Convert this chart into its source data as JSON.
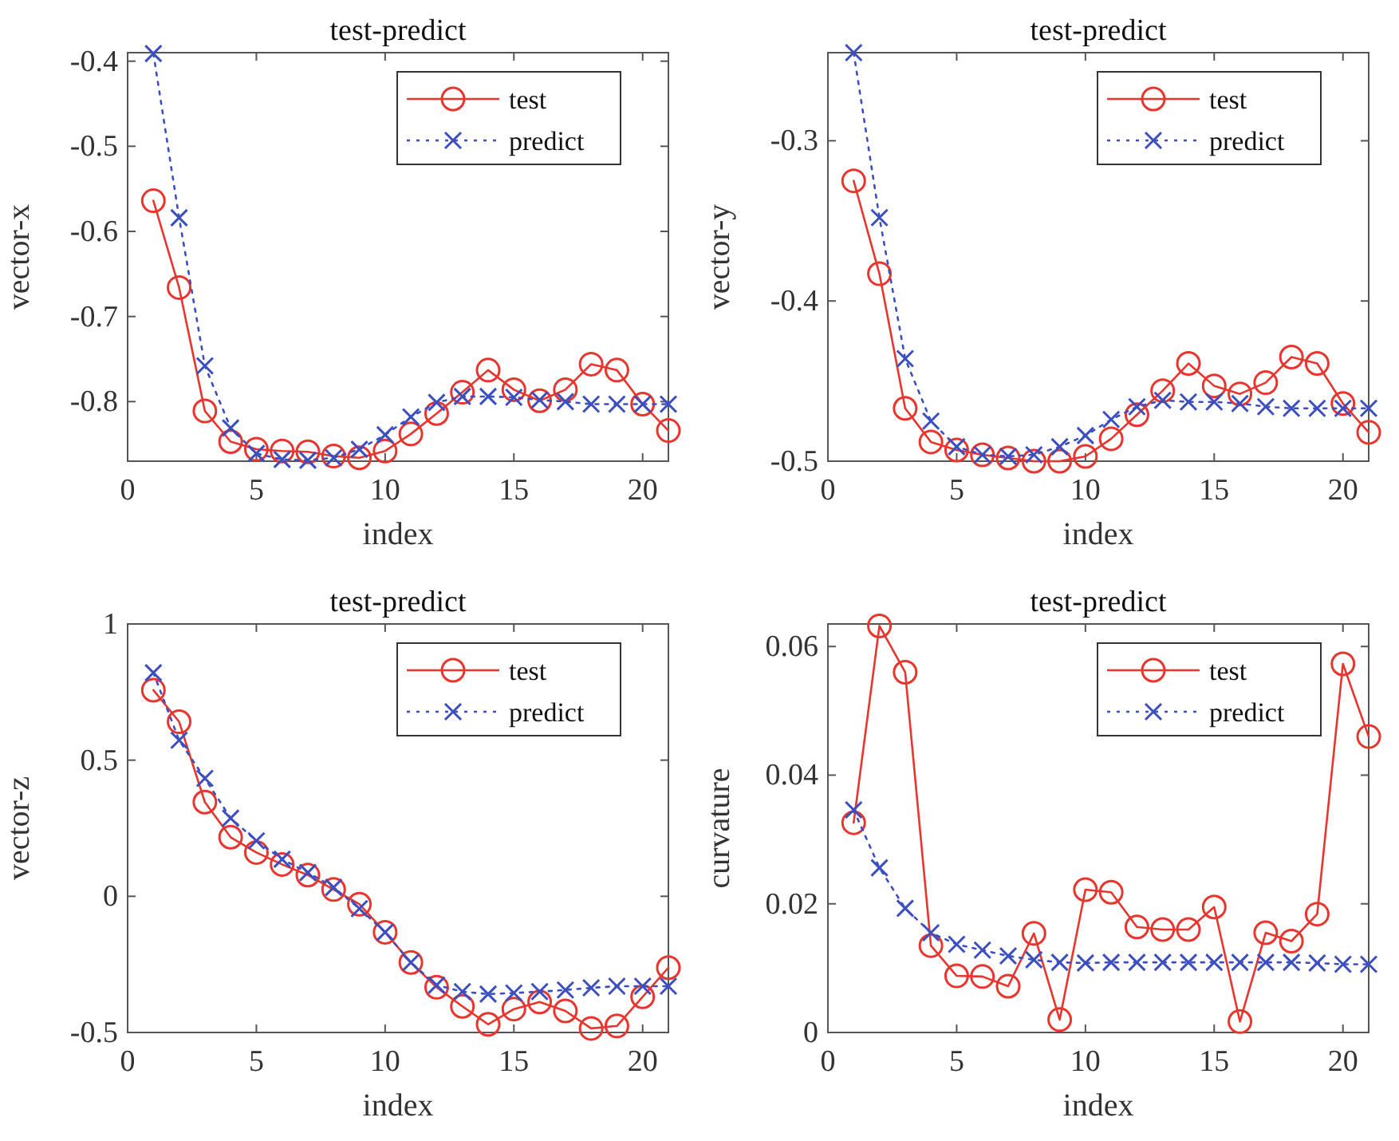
{
  "chart_data": [
    {
      "type": "line",
      "title": "test-predict",
      "xlabel": "index",
      "ylabel": "vector-x",
      "x": [
        1,
        2,
        3,
        4,
        5,
        6,
        7,
        8,
        9,
        10,
        11,
        12,
        13,
        14,
        15,
        16,
        17,
        18,
        19,
        20,
        21
      ],
      "xlim": [
        0,
        21
      ],
      "xticks": [
        0,
        5,
        10,
        15,
        20
      ],
      "ylim": [
        -0.87,
        -0.39
      ],
      "yticks": [
        -0.8,
        -0.7,
        -0.6,
        -0.5,
        -0.4
      ],
      "grid": false,
      "legend": "top right",
      "series": [
        {
          "name": "test",
          "color": "#e8352e",
          "marker": "circle",
          "line_style": "solid",
          "values": [
            -0.564,
            -0.666,
            -0.811,
            -0.847,
            -0.856,
            -0.858,
            -0.859,
            -0.864,
            -0.866,
            -0.858,
            -0.838,
            -0.814,
            -0.789,
            -0.763,
            -0.786,
            -0.799,
            -0.786,
            -0.756,
            -0.763,
            -0.803,
            -0.834
          ]
        },
        {
          "name": "predict",
          "color": "#3b4fc0",
          "marker": "cross",
          "line_style": "dotted",
          "values": [
            -0.391,
            -0.584,
            -0.758,
            -0.831,
            -0.861,
            -0.868,
            -0.869,
            -0.866,
            -0.856,
            -0.839,
            -0.818,
            -0.801,
            -0.794,
            -0.794,
            -0.795,
            -0.798,
            -0.8,
            -0.803,
            -0.803,
            -0.803,
            -0.803
          ]
        }
      ]
    },
    {
      "type": "line",
      "title": "test-predict",
      "xlabel": "index",
      "ylabel": "vector-y",
      "x": [
        1,
        2,
        3,
        4,
        5,
        6,
        7,
        8,
        9,
        10,
        11,
        12,
        13,
        14,
        15,
        16,
        17,
        18,
        19,
        20,
        21
      ],
      "xlim": [
        0,
        21
      ],
      "xticks": [
        0,
        5,
        10,
        15,
        20
      ],
      "ylim": [
        -0.5,
        -0.245
      ],
      "yticks": [
        -0.5,
        -0.4,
        -0.3
      ],
      "grid": false,
      "legend": "top right",
      "series": [
        {
          "name": "test",
          "color": "#e8352e",
          "marker": "circle",
          "line_style": "solid",
          "values": [
            -0.325,
            -0.383,
            -0.467,
            -0.488,
            -0.493,
            -0.496,
            -0.498,
            -0.5,
            -0.5,
            -0.497,
            -0.486,
            -0.471,
            -0.456,
            -0.439,
            -0.453,
            -0.458,
            -0.451,
            -0.435,
            -0.439,
            -0.464,
            -0.482
          ]
        },
        {
          "name": "predict",
          "color": "#3b4fc0",
          "marker": "cross",
          "line_style": "dotted",
          "values": [
            -0.245,
            -0.348,
            -0.436,
            -0.475,
            -0.491,
            -0.496,
            -0.497,
            -0.496,
            -0.491,
            -0.484,
            -0.474,
            -0.466,
            -0.462,
            -0.463,
            -0.463,
            -0.464,
            -0.466,
            -0.467,
            -0.467,
            -0.467,
            -0.467
          ]
        }
      ]
    },
    {
      "type": "line",
      "title": "test-predict",
      "xlabel": "index",
      "ylabel": "vector-z",
      "x": [
        1,
        2,
        3,
        4,
        5,
        6,
        7,
        8,
        9,
        10,
        11,
        12,
        13,
        14,
        15,
        16,
        17,
        18,
        19,
        20,
        21
      ],
      "xlim": [
        0,
        21
      ],
      "xticks": [
        0,
        5,
        10,
        15,
        20
      ],
      "ylim": [
        -0.5,
        1
      ],
      "yticks": [
        -0.5,
        0,
        0.5,
        1
      ],
      "grid": false,
      "legend": "top right",
      "series": [
        {
          "name": "test",
          "color": "#e8352e",
          "marker": "circle",
          "line_style": "solid",
          "values": [
            0.757,
            0.641,
            0.346,
            0.217,
            0.161,
            0.117,
            0.078,
            0.025,
            -0.029,
            -0.132,
            -0.243,
            -0.334,
            -0.404,
            -0.47,
            -0.414,
            -0.388,
            -0.421,
            -0.485,
            -0.476,
            -0.369,
            -0.262
          ]
        },
        {
          "name": "predict",
          "color": "#3b4fc0",
          "marker": "cross",
          "line_style": "dotted",
          "values": [
            0.821,
            0.573,
            0.433,
            0.287,
            0.204,
            0.136,
            0.087,
            0.033,
            -0.045,
            -0.132,
            -0.243,
            -0.326,
            -0.35,
            -0.359,
            -0.355,
            -0.35,
            -0.344,
            -0.336,
            -0.33,
            -0.33,
            -0.33
          ]
        }
      ]
    },
    {
      "type": "line",
      "title": "test-predict",
      "xlabel": "index",
      "ylabel": "curvature",
      "x": [
        1,
        2,
        3,
        4,
        5,
        6,
        7,
        8,
        9,
        10,
        11,
        12,
        13,
        14,
        15,
        16,
        17,
        18,
        19,
        20,
        21
      ],
      "xlim": [
        0,
        21
      ],
      "xticks": [
        0,
        5,
        10,
        15,
        20
      ],
      "ylim": [
        0,
        0.0635
      ],
      "yticks": [
        0,
        0.02,
        0.04,
        0.06
      ],
      "grid": false,
      "legend": "top right",
      "series": [
        {
          "name": "test",
          "color": "#e8352e",
          "marker": "circle",
          "line_style": "solid",
          "values": [
            0.0326,
            0.0632,
            0.056,
            0.0135,
            0.0088,
            0.0087,
            0.0072,
            0.0154,
            0.002,
            0.0222,
            0.0218,
            0.0164,
            0.016,
            0.016,
            0.0195,
            0.0017,
            0.0155,
            0.0142,
            0.0184,
            0.0573,
            0.046
          ]
        },
        {
          "name": "predict",
          "color": "#3b4fc0",
          "marker": "cross",
          "line_style": "dotted",
          "values": [
            0.0346,
            0.0256,
            0.0193,
            0.0155,
            0.0137,
            0.0128,
            0.0119,
            0.0113,
            0.0109,
            0.0108,
            0.0109,
            0.0109,
            0.0109,
            0.0109,
            0.0109,
            0.0109,
            0.0109,
            0.0109,
            0.0108,
            0.0106,
            0.0106
          ]
        }
      ]
    }
  ]
}
